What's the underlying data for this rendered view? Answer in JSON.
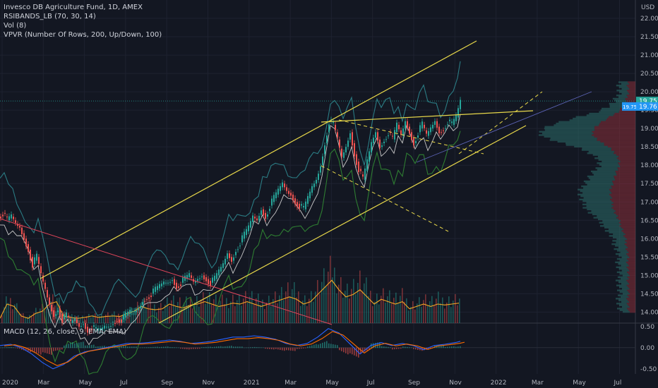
{
  "header": {
    "symbol_line": "Invesco DB Agriculture Fund, 1D, AMEX",
    "indicators": [
      "RSIBANDS_LB (70, 30, 14)",
      "Vol (8)",
      "VPVR (Number Of Rows, 200, Up/Down, 100)"
    ]
  },
  "macd_label": "MACD (12, 26, close, 9, EMA, EMA)",
  "chart_data": {
    "type": "candlestick",
    "currency": "USD",
    "price_ticks": [
      "14.00",
      "14.50",
      "15.00",
      "15.50",
      "16.00",
      "16.50",
      "17.00",
      "17.50",
      "18.00",
      "18.50",
      "19.00",
      "19.50",
      "20.00",
      "20.50",
      "21.00",
      "21.50",
      "22.00"
    ],
    "price_range": [
      13.7,
      22.5
    ],
    "time_ticks": [
      "2020",
      "Mar",
      "May",
      "Jul",
      "Sep",
      "Nov",
      "2021",
      "Mar",
      "May",
      "Jul",
      "Sep",
      "Nov",
      "2022",
      "Mar",
      "May",
      "Jul"
    ],
    "macd_ticks": [
      "0.50",
      "0.00",
      "-0.50"
    ],
    "macd_range": [
      -0.62,
      0.58
    ],
    "current_price": "19.75",
    "bid_label": "19.75",
    "ask_label": "19.76",
    "price_path": [
      [
        0,
        16.6
      ],
      [
        6,
        16.7
      ],
      [
        12,
        16.5
      ],
      [
        18,
        16.6
      ],
      [
        24,
        16.4
      ],
      [
        30,
        16.3
      ],
      [
        36,
        16.0
      ],
      [
        42,
        15.7
      ],
      [
        48,
        15.3
      ],
      [
        54,
        15.5
      ],
      [
        60,
        15.0
      ],
      [
        66,
        14.6
      ],
      [
        72,
        14.2
      ],
      [
        78,
        13.9
      ],
      [
        84,
        14.1
      ],
      [
        90,
        13.8
      ],
      [
        96,
        13.9
      ],
      [
        102,
        13.7
      ],
      [
        108,
        13.8
      ],
      [
        114,
        13.6
      ],
      [
        120,
        13.7
      ],
      [
        126,
        13.5
      ],
      [
        132,
        13.6
      ],
      [
        138,
        13.5
      ],
      [
        144,
        13.5
      ],
      [
        150,
        13.6
      ],
      [
        156,
        13.6
      ],
      [
        162,
        13.7
      ],
      [
        168,
        13.8
      ],
      [
        174,
        13.8
      ],
      [
        180,
        13.9
      ],
      [
        186,
        14.0
      ],
      [
        192,
        14.0
      ],
      [
        198,
        14.1
      ],
      [
        204,
        14.3
      ],
      [
        210,
        14.4
      ],
      [
        216,
        14.5
      ],
      [
        222,
        14.6
      ],
      [
        228,
        14.7
      ],
      [
        234,
        14.8
      ],
      [
        240,
        14.8
      ],
      [
        246,
        14.9
      ],
      [
        252,
        14.7
      ],
      [
        258,
        14.8
      ],
      [
        264,
        14.9
      ],
      [
        270,
        15.0
      ],
      [
        276,
        14.8
      ],
      [
        282,
        14.9
      ],
      [
        288,
        15.0
      ],
      [
        294,
        14.9
      ],
      [
        300,
        14.8
      ],
      [
        306,
        14.9
      ],
      [
        312,
        15.1
      ],
      [
        318,
        15.3
      ],
      [
        324,
        15.6
      ],
      [
        330,
        15.4
      ],
      [
        336,
        15.7
      ],
      [
        342,
        15.9
      ],
      [
        348,
        16.1
      ],
      [
        354,
        16.3
      ],
      [
        360,
        16.6
      ],
      [
        366,
        16.5
      ],
      [
        372,
        16.8
      ],
      [
        378,
        16.6
      ],
      [
        384,
        16.9
      ],
      [
        390,
        17.1
      ],
      [
        396,
        17.3
      ],
      [
        402,
        17.5
      ],
      [
        408,
        17.3
      ],
      [
        414,
        17.2
      ],
      [
        420,
        17.0
      ],
      [
        426,
        16.9
      ],
      [
        432,
        16.8
      ],
      [
        438,
        17.1
      ],
      [
        444,
        17.4
      ],
      [
        450,
        17.6
      ],
      [
        456,
        18.0
      ],
      [
        462,
        18.6
      ],
      [
        468,
        19.2
      ],
      [
        474,
        19.1
      ],
      [
        480,
        18.7
      ],
      [
        486,
        18.2
      ],
      [
        492,
        18.5
      ],
      [
        498,
        18.9
      ],
      [
        504,
        18.3
      ],
      [
        510,
        17.9
      ],
      [
        516,
        17.6
      ],
      [
        522,
        18.1
      ],
      [
        528,
        18.6
      ],
      [
        534,
        18.9
      ],
      [
        540,
        18.5
      ],
      [
        546,
        18.7
      ],
      [
        552,
        18.9
      ],
      [
        558,
        18.7
      ],
      [
        564,
        19.1
      ],
      [
        570,
        18.8
      ],
      [
        576,
        19.2
      ],
      [
        582,
        18.9
      ],
      [
        588,
        18.6
      ],
      [
        594,
        18.9
      ],
      [
        600,
        19.1
      ],
      [
        606,
        18.8
      ],
      [
        612,
        19.0
      ],
      [
        618,
        19.2
      ],
      [
        624,
        18.9
      ],
      [
        630,
        19.0
      ],
      [
        636,
        19.2
      ],
      [
        642,
        19.1
      ],
      [
        648,
        19.3
      ],
      [
        652,
        19.75
      ]
    ],
    "volume_path": [
      [
        0,
        0.1
      ],
      [
        10,
        0.4
      ],
      [
        20,
        0.35
      ],
      [
        30,
        0.15
      ],
      [
        40,
        0.1
      ],
      [
        50,
        0.2
      ],
      [
        60,
        0.25
      ],
      [
        70,
        0.4
      ],
      [
        80,
        0.45
      ],
      [
        90,
        0.15
      ],
      [
        100,
        0.12
      ],
      [
        110,
        0.1
      ],
      [
        120,
        0.12
      ],
      [
        130,
        0.15
      ],
      [
        140,
        0.12
      ],
      [
        150,
        0.14
      ],
      [
        160,
        0.15
      ],
      [
        170,
        0.14
      ],
      [
        180,
        0.2
      ],
      [
        190,
        0.25
      ],
      [
        200,
        0.35
      ],
      [
        210,
        0.3
      ],
      [
        220,
        0.28
      ],
      [
        230,
        0.3
      ],
      [
        240,
        0.4
      ],
      [
        250,
        0.35
      ],
      [
        260,
        0.32
      ],
      [
        270,
        0.38
      ],
      [
        280,
        0.4
      ],
      [
        290,
        0.45
      ],
      [
        300,
        0.4
      ],
      [
        310,
        0.35
      ],
      [
        320,
        0.38
      ],
      [
        330,
        0.42
      ],
      [
        340,
        0.4
      ],
      [
        350,
        0.45
      ],
      [
        360,
        0.4
      ],
      [
        370,
        0.35
      ],
      [
        380,
        0.4
      ],
      [
        390,
        0.45
      ],
      [
        400,
        0.5
      ],
      [
        410,
        0.55
      ],
      [
        420,
        0.5
      ],
      [
        430,
        0.4
      ],
      [
        440,
        0.45
      ],
      [
        450,
        0.6
      ],
      [
        460,
        0.75
      ],
      [
        470,
        0.9
      ],
      [
        480,
        0.7
      ],
      [
        490,
        0.55
      ],
      [
        500,
        0.6
      ],
      [
        510,
        0.7
      ],
      [
        520,
        0.55
      ],
      [
        530,
        0.4
      ],
      [
        540,
        0.5
      ],
      [
        550,
        0.45
      ],
      [
        560,
        0.4
      ],
      [
        570,
        0.45
      ],
      [
        580,
        0.3
      ],
      [
        590,
        0.35
      ],
      [
        600,
        0.4
      ],
      [
        610,
        0.35
      ],
      [
        620,
        0.4
      ],
      [
        630,
        0.38
      ],
      [
        640,
        0.4
      ],
      [
        650,
        0.42
      ]
    ],
    "macd_path": [
      [
        0,
        0.05
      ],
      [
        15,
        0.08
      ],
      [
        30,
        0.0
      ],
      [
        45,
        -0.15
      ],
      [
        60,
        -0.35
      ],
      [
        75,
        -0.5
      ],
      [
        90,
        -0.4
      ],
      [
        105,
        -0.2
      ],
      [
        120,
        -0.1
      ],
      [
        135,
        -0.05
      ],
      [
        150,
        0.0
      ],
      [
        165,
        0.05
      ],
      [
        180,
        0.1
      ],
      [
        195,
        0.1
      ],
      [
        210,
        0.12
      ],
      [
        225,
        0.15
      ],
      [
        240,
        0.18
      ],
      [
        255,
        0.15
      ],
      [
        270,
        0.1
      ],
      [
        285,
        0.12
      ],
      [
        300,
        0.15
      ],
      [
        315,
        0.2
      ],
      [
        330,
        0.25
      ],
      [
        345,
        0.25
      ],
      [
        360,
        0.28
      ],
      [
        375,
        0.25
      ],
      [
        390,
        0.2
      ],
      [
        405,
        0.1
      ],
      [
        420,
        0.05
      ],
      [
        435,
        0.1
      ],
      [
        450,
        0.25
      ],
      [
        465,
        0.45
      ],
      [
        480,
        0.35
      ],
      [
        495,
        0.1
      ],
      [
        510,
        -0.15
      ],
      [
        525,
        0.05
      ],
      [
        540,
        0.12
      ],
      [
        555,
        0.05
      ],
      [
        570,
        0.1
      ],
      [
        585,
        0.05
      ],
      [
        600,
        -0.05
      ],
      [
        615,
        0.05
      ],
      [
        630,
        0.08
      ],
      [
        645,
        0.12
      ],
      [
        652,
        0.15
      ]
    ],
    "drawings": "trend channel, wedge and parallel dashed lines"
  }
}
